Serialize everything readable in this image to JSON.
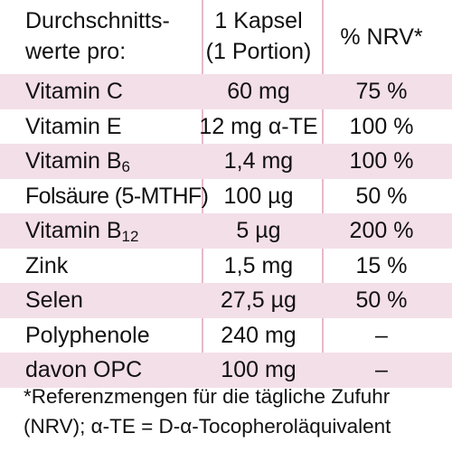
{
  "header": {
    "col1_line1": "Durchschnitts-",
    "col1_line2": "werte pro:",
    "col2_line1": "1 Kapsel",
    "col2_line2": "(1 Portion)",
    "col3": "% NRV*"
  },
  "rows": [
    {
      "name": "Vitamin C",
      "sub": "",
      "amount": "60 mg",
      "nrv": "75 %"
    },
    {
      "name": "Vitamin E",
      "sub": "",
      "amount": "12 mg α-TE",
      "nrv": "100 %"
    },
    {
      "name": "Vitamin B",
      "sub": "6",
      "amount": "1,4 mg",
      "nrv": "100 %"
    },
    {
      "name": "Folsäure (5-MTHF)",
      "sub": "",
      "amount": "100 µg",
      "nrv": "50 %"
    },
    {
      "name": "Vitamin B",
      "sub": "12",
      "amount": "5 µg",
      "nrv": "200 %"
    },
    {
      "name": "Zink",
      "sub": "",
      "amount": "1,5 mg",
      "nrv": "15 %"
    },
    {
      "name": "Selen",
      "sub": "",
      "amount": "27,5 µg",
      "nrv": "50 %"
    },
    {
      "name": "Polyphenole",
      "sub": "",
      "amount": "240 mg",
      "nrv": "–"
    },
    {
      "name": "davon OPC",
      "sub": "",
      "amount": "100 mg",
      "nrv": "–"
    }
  ],
  "footnote": {
    "line1": "*Referenzmengen für die tägliche Zufuhr",
    "line2": "(NRV); α-TE = D-α-Tocopheroläquivalent"
  },
  "colors": {
    "row_shade": "#f3dfe8",
    "divider": "#e7b9cc",
    "text": "#111111"
  }
}
